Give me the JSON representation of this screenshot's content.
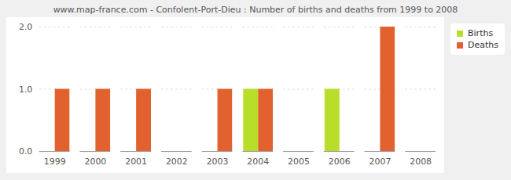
{
  "chart_data": {
    "type": "bar",
    "title": "www.map-france.com - Confolent-Port-Dieu : Number of births and deaths from 1999 to 2008",
    "categories": [
      "1999",
      "2000",
      "2001",
      "2002",
      "2003",
      "2004",
      "2005",
      "2006",
      "2007",
      "2008"
    ],
    "series": [
      {
        "name": "Births",
        "color": "#b8de2a",
        "values": [
          0,
          0,
          0,
          0,
          0,
          1,
          0,
          1,
          0,
          0
        ]
      },
      {
        "name": "Deaths",
        "color": "#e2622f",
        "values": [
          1,
          1,
          1,
          0,
          1,
          1,
          0,
          0,
          2,
          0
        ]
      }
    ],
    "ylim": [
      0,
      2
    ],
    "yticks": [
      0,
      1,
      2
    ],
    "grid": true,
    "legend": "top-right"
  }
}
